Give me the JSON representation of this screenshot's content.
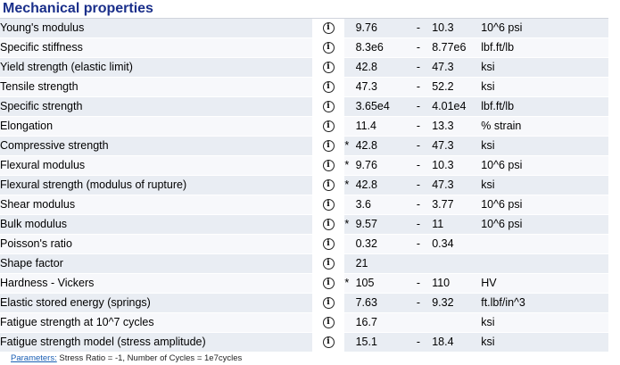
{
  "section": {
    "title": "Mechanical properties"
  },
  "rows": [
    {
      "name": "Young's modulus",
      "star": "",
      "low": "9.76",
      "dash": "-",
      "high": "10.3",
      "unit": "10^6 psi"
    },
    {
      "name": "Specific stiffness",
      "star": "",
      "low": "8.3e6",
      "dash": "-",
      "high": "8.77e6",
      "unit": "lbf.ft/lb"
    },
    {
      "name": "Yield strength (elastic limit)",
      "star": "",
      "low": "42.8",
      "dash": "-",
      "high": "47.3",
      "unit": "ksi"
    },
    {
      "name": "Tensile strength",
      "star": "",
      "low": "47.3",
      "dash": "-",
      "high": "52.2",
      "unit": "ksi"
    },
    {
      "name": "Specific strength",
      "star": "",
      "low": "3.65e4",
      "dash": "-",
      "high": "4.01e4",
      "unit": "lbf.ft/lb"
    },
    {
      "name": "Elongation",
      "star": "",
      "low": "11.4",
      "dash": "-",
      "high": "13.3",
      "unit": "% strain"
    },
    {
      "name": "Compressive strength",
      "star": "*",
      "low": "42.8",
      "dash": "-",
      "high": "47.3",
      "unit": "ksi"
    },
    {
      "name": "Flexural modulus",
      "star": "*",
      "low": "9.76",
      "dash": "-",
      "high": "10.3",
      "unit": "10^6 psi"
    },
    {
      "name": "Flexural strength (modulus of rupture)",
      "star": "*",
      "low": "42.8",
      "dash": "-",
      "high": "47.3",
      "unit": "ksi"
    },
    {
      "name": "Shear modulus",
      "star": "",
      "low": "3.6",
      "dash": "-",
      "high": "3.77",
      "unit": "10^6 psi"
    },
    {
      "name": "Bulk modulus",
      "star": "*",
      "low": "9.57",
      "dash": "-",
      "high": "11",
      "unit": "10^6 psi"
    },
    {
      "name": "Poisson's ratio",
      "star": "",
      "low": "0.32",
      "dash": "-",
      "high": "0.34",
      "unit": ""
    },
    {
      "name": "Shape factor",
      "star": "",
      "low": "21",
      "dash": "",
      "high": "",
      "unit": ""
    },
    {
      "name": "Hardness - Vickers",
      "star": "*",
      "low": "105",
      "dash": "-",
      "high": "110",
      "unit": "HV"
    },
    {
      "name": "Elastic stored energy (springs)",
      "star": "",
      "low": "7.63",
      "dash": "-",
      "high": "9.32",
      "unit": "ft.lbf/in^3"
    },
    {
      "name": "Fatigue strength at 10^7 cycles",
      "star": "",
      "low": "16.7",
      "dash": "",
      "high": "",
      "unit": "ksi"
    },
    {
      "name": "Fatigue strength model (stress amplitude)",
      "star": "",
      "low": "15.1",
      "dash": "-",
      "high": "18.4",
      "unit": "ksi"
    }
  ],
  "info_icon": {
    "glyph": "i",
    "icon": "info-circle-icon"
  },
  "footer": {
    "link_label": "Parameters:",
    "text": " Stress Ratio = -1, Number of Cycles = 1e7cycles"
  }
}
